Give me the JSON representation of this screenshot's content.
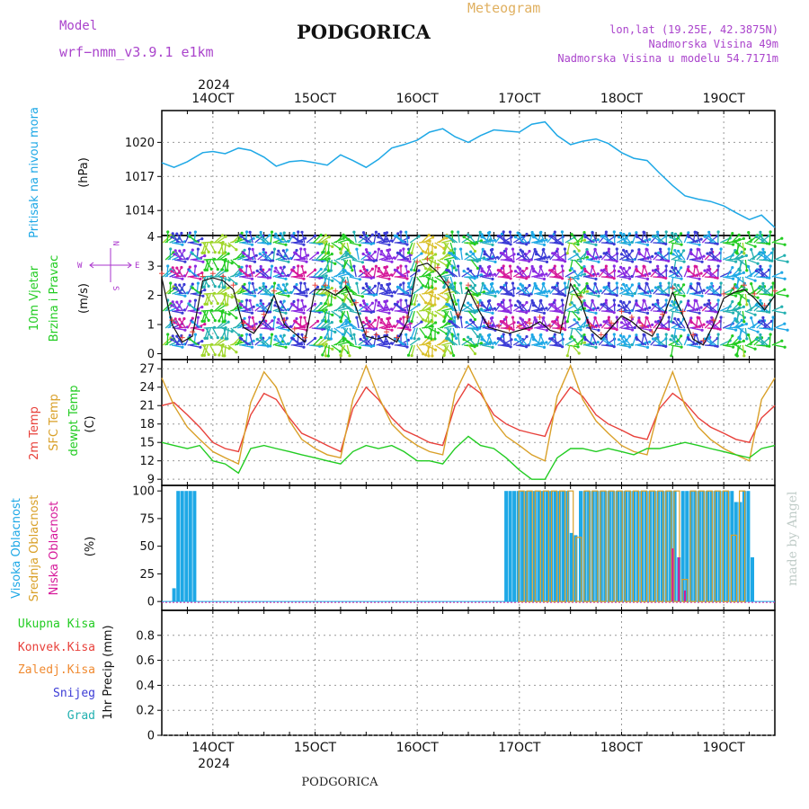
{
  "header": {
    "model_label": "Model",
    "model_name": "wrf−nmm_v3.9.1  e1km",
    "title": "PODGORICA",
    "meteogram_label": "Meteogram",
    "location": "lon,lat (19.25E, 42.3875N)",
    "elevation": "Nadmorska Visina 49m",
    "model_elevation": "Nadmorska Visina u modelu 54.7171m",
    "credit": "made by Angel",
    "footer": "PODGORICA"
  },
  "colors": {
    "pressure": "#1ea8e6",
    "wind_label": "#22cc22",
    "compass": "#aa33cc",
    "temp2m": "#e8403a",
    "sfc_temp": "#d9a028",
    "dewpt": "#22cc22",
    "high_cloud": "#1ea8e6",
    "mid_cloud": "#d9a028",
    "low_cloud": "#d6199a",
    "precip_total": "#22cc22",
    "precip_conv": "#e8403a",
    "precip_frz": "#f08a30",
    "snow": "#3b3bd6",
    "graupel": "#22b0b0",
    "header": "#aa44cc",
    "meteogram": "#e0b060"
  },
  "chart_data": [
    {
      "type": "line",
      "panel": "pressure",
      "ylabel_1": "Pritisak na nivou mora",
      "ylabel_2": "(hPa)",
      "ylim": [
        1011.8,
        1022.8
      ],
      "yticks": [
        1014,
        1017,
        1020
      ],
      "x_days": [
        13.5,
        13.62,
        13.75,
        13.9,
        14.0,
        14.12,
        14.25,
        14.37,
        14.5,
        14.62,
        14.75,
        14.87,
        15.0,
        15.12,
        15.25,
        15.37,
        15.5,
        15.62,
        15.75,
        15.87,
        16.0,
        16.12,
        16.25,
        16.37,
        16.5,
        16.62,
        16.75,
        16.87,
        17.0,
        17.12,
        17.25,
        17.37,
        17.5,
        17.62,
        17.75,
        17.87,
        18.0,
        18.12,
        18.25,
        18.37,
        18.5,
        18.62,
        18.75,
        18.87,
        19.0,
        19.12,
        19.25,
        19.37,
        19.5
      ],
      "values": [
        1018.2,
        1017.8,
        1018.3,
        1019.1,
        1019.2,
        1019.0,
        1019.5,
        1019.3,
        1018.7,
        1017.9,
        1018.3,
        1018.4,
        1018.2,
        1018.0,
        1018.9,
        1018.4,
        1017.8,
        1018.5,
        1019.5,
        1019.8,
        1020.2,
        1020.9,
        1021.2,
        1020.5,
        1020.0,
        1020.6,
        1021.1,
        1021.0,
        1020.9,
        1021.6,
        1021.8,
        1020.6,
        1019.8,
        1020.1,
        1020.3,
        1019.9,
        1019.1,
        1018.6,
        1018.4,
        1017.3,
        1016.2,
        1015.3,
        1015.0,
        1014.8,
        1014.4,
        1013.8,
        1013.2,
        1013.6,
        1012.5
      ]
    },
    {
      "type": "line",
      "panel": "wind",
      "ylabel_1": "10m Vjetar",
      "ylabel_2": "Brzina i Pravac",
      "ylabel_3": "(m/s)",
      "compass_w": "W",
      "compass_e": "E",
      "compass_n": "N",
      "compass_s": "S",
      "ylim": [
        -0.2,
        4.05
      ],
      "yticks": [
        0,
        1,
        2,
        3,
        4
      ],
      "x_days": [
        13.5,
        13.6,
        13.7,
        13.8,
        13.9,
        14.0,
        14.1,
        14.2,
        14.3,
        14.4,
        14.5,
        14.6,
        14.7,
        14.8,
        14.9,
        15.0,
        15.1,
        15.2,
        15.3,
        15.4,
        15.5,
        15.6,
        15.7,
        15.8,
        15.9,
        16.0,
        16.1,
        16.2,
        16.3,
        16.4,
        16.5,
        16.6,
        16.7,
        16.8,
        16.9,
        17.0,
        17.1,
        17.2,
        17.3,
        17.4,
        17.5,
        17.6,
        17.7,
        17.8,
        17.9,
        18.0,
        18.1,
        18.2,
        18.3,
        18.4,
        18.5,
        18.6,
        18.7,
        18.8,
        18.9,
        19.0,
        19.1,
        19.2,
        19.3,
        19.4,
        19.5
      ],
      "values": [
        2.6,
        1.0,
        0.4,
        0.6,
        2.5,
        2.6,
        2.5,
        2.2,
        0.9,
        0.7,
        1.2,
        2.0,
        1.0,
        0.7,
        0.4,
        2.2,
        2.2,
        2.0,
        2.3,
        1.6,
        0.6,
        0.5,
        0.6,
        0.4,
        1.1,
        3.0,
        3.1,
        2.8,
        2.3,
        1.2,
        2.2,
        1.5,
        0.9,
        0.8,
        0.7,
        0.8,
        0.9,
        1.1,
        0.8,
        0.7,
        2.4,
        1.8,
        0.8,
        0.5,
        0.9,
        1.3,
        1.1,
        0.8,
        0.6,
        1.2,
        2.1,
        1.3,
        0.5,
        0.3,
        1.0,
        1.9,
        2.1,
        2.2,
        1.9,
        1.5,
        2.0
      ]
    },
    {
      "type": "line",
      "panel": "temperature",
      "ylabel_1": "2m Temp",
      "ylabel_2": "SFC Temp",
      "ylabel_3": "dewpt Temp",
      "ylabel_4": "(C)",
      "ylim": [
        8,
        28.5
      ],
      "yticks": [
        9,
        12,
        15,
        18,
        21,
        24,
        27
      ],
      "x_days": [
        13.5,
        13.62,
        13.75,
        13.87,
        14.0,
        14.12,
        14.25,
        14.37,
        14.5,
        14.62,
        14.75,
        14.87,
        15.0,
        15.12,
        15.25,
        15.37,
        15.5,
        15.62,
        15.75,
        15.87,
        16.0,
        16.12,
        16.25,
        16.37,
        16.5,
        16.62,
        16.75,
        16.87,
        17.0,
        17.12,
        17.25,
        17.37,
        17.5,
        17.62,
        17.75,
        17.87,
        18.0,
        18.12,
        18.25,
        18.37,
        18.5,
        18.62,
        18.75,
        18.87,
        19.0,
        19.12,
        19.25,
        19.37,
        19.5
      ],
      "series": [
        {
          "name": "2m Temp",
          "values": [
            21.0,
            21.5,
            19.5,
            17.5,
            15.0,
            14.0,
            13.5,
            19.5,
            23.0,
            22.0,
            19.0,
            16.5,
            15.5,
            14.5,
            13.5,
            20.5,
            24.0,
            22.0,
            19.0,
            17.0,
            16.0,
            15.0,
            14.5,
            21.0,
            24.5,
            23.0,
            19.5,
            18.0,
            17.0,
            16.5,
            16.0,
            21.0,
            24.0,
            22.5,
            19.5,
            18.0,
            17.0,
            16.0,
            15.5,
            20.5,
            23.0,
            21.5,
            19.0,
            17.5,
            16.5,
            15.5,
            15.0,
            19.0,
            21.0
          ]
        },
        {
          "name": "SFC Temp",
          "values": [
            25.5,
            21.0,
            17.5,
            15.5,
            13.5,
            12.5,
            11.5,
            21.5,
            26.5,
            24.0,
            18.5,
            15.5,
            14.0,
            13.0,
            12.5,
            22.0,
            27.5,
            22.5,
            18.0,
            16.0,
            14.5,
            13.5,
            13.0,
            23.0,
            27.5,
            23.5,
            18.5,
            16.0,
            14.5,
            13.0,
            12.0,
            22.5,
            27.5,
            22.0,
            18.5,
            16.5,
            14.5,
            13.5,
            13.0,
            21.0,
            26.5,
            21.0,
            17.5,
            15.5,
            14.0,
            13.0,
            12.0,
            22.0,
            25.5
          ]
        },
        {
          "name": "dewpt Temp",
          "values": [
            15.0,
            14.5,
            14.0,
            14.5,
            12.0,
            11.5,
            10.0,
            14.0,
            14.5,
            14.0,
            13.5,
            13.0,
            12.5,
            12.0,
            11.5,
            13.5,
            14.5,
            14.0,
            14.5,
            13.5,
            12.0,
            12.0,
            11.5,
            14.0,
            16.0,
            14.5,
            14.0,
            12.5,
            10.5,
            9.0,
            9.0,
            12.5,
            14.0,
            14.0,
            13.5,
            14.0,
            13.5,
            13.0,
            14.0,
            14.0,
            14.5,
            15.0,
            14.5,
            14.0,
            13.5,
            13.0,
            12.5,
            14.0,
            14.5
          ]
        }
      ]
    },
    {
      "type": "bar",
      "panel": "clouds",
      "ylabel_1": "Visoka Oblacnost",
      "ylabel_2": "Srednja Oblacnost",
      "ylabel_3": "Niska  Oblacnost",
      "ylabel_4": "(%)",
      "ylim": [
        -8,
        105
      ],
      "yticks": [
        0,
        25,
        50,
        75,
        100
      ],
      "series": [
        {
          "name": "Visoka Oblacnost",
          "x_days": [
            13.62,
            13.66,
            13.7,
            13.74,
            13.78,
            13.82,
            16.87,
            16.91,
            16.95,
            16.99,
            17.03,
            17.07,
            17.11,
            17.15,
            17.19,
            17.23,
            17.27,
            17.31,
            17.35,
            17.39,
            17.43,
            17.47,
            17.51,
            17.55,
            17.6,
            17.64,
            17.68,
            17.72,
            17.76,
            17.8,
            17.84,
            17.88,
            17.92,
            17.96,
            18.0,
            18.04,
            18.08,
            18.12,
            18.16,
            18.2,
            18.24,
            18.28,
            18.32,
            18.36,
            18.4,
            18.44,
            18.48,
            18.52,
            18.56,
            18.6,
            18.64,
            18.68,
            18.72,
            18.76,
            18.8,
            18.84,
            18.88,
            18.92,
            18.96,
            19.0,
            19.04,
            19.08,
            19.12,
            19.16,
            19.2,
            19.24,
            19.28
          ],
          "values": [
            12,
            100,
            100,
            100,
            100,
            100,
            100,
            100,
            100,
            100,
            100,
            100,
            100,
            100,
            100,
            100,
            100,
            100,
            100,
            100,
            100,
            100,
            62,
            60,
            100,
            100,
            100,
            100,
            100,
            100,
            100,
            100,
            100,
            100,
            100,
            100,
            100,
            100,
            100,
            100,
            100,
            100,
            100,
            100,
            100,
            100,
            100,
            100,
            40,
            100,
            100,
            100,
            100,
            100,
            100,
            100,
            100,
            100,
            100,
            100,
            100,
            100,
            90,
            90,
            100,
            100,
            40
          ]
        },
        {
          "name": "Srednja Oblacnost",
          "x_days": [
            17.02,
            17.1,
            17.18,
            17.26,
            17.34,
            17.42,
            17.5,
            17.58,
            17.66,
            17.74,
            17.82,
            17.9,
            17.98,
            18.06,
            18.14,
            18.22,
            18.3,
            18.38,
            18.46,
            18.54,
            18.62,
            18.7,
            18.78,
            18.86,
            18.94,
            19.02,
            19.1,
            19.18
          ],
          "values": [
            100,
            100,
            100,
            100,
            100,
            100,
            100,
            58,
            100,
            100,
            100,
            100,
            100,
            100,
            100,
            100,
            100,
            100,
            100,
            100,
            20,
            100,
            100,
            100,
            100,
            100,
            60,
            100
          ]
        },
        {
          "name": "Niska  Oblacnost",
          "x_days": [
            18.5,
            18.56,
            18.62
          ],
          "values": [
            48,
            40,
            10
          ]
        }
      ]
    },
    {
      "type": "bar",
      "panel": "precip",
      "ylabel_1": "1hr Precip (mm)",
      "legend_1": "Ukupna  Kisa",
      "legend_2": "Konvek.Kisa",
      "legend_3": "Zaledj.Kisa",
      "legend_4": "Snijeg",
      "legend_5": "Grad",
      "ylim": [
        0,
        1.0
      ],
      "yticks": [
        "0",
        "0.2",
        "0.4",
        "0.6",
        "0.8"
      ],
      "values": []
    }
  ],
  "time_axis": {
    "year_top": "2024",
    "year_bottom": "2024",
    "ticks": [
      {
        "day": 14,
        "label": "14OCT"
      },
      {
        "day": 15,
        "label": "15OCT"
      },
      {
        "day": 16,
        "label": "16OCT"
      },
      {
        "day": 17,
        "label": "17OCT"
      },
      {
        "day": 18,
        "label": "18OCT"
      },
      {
        "day": 19,
        "label": "19OCT"
      }
    ]
  }
}
